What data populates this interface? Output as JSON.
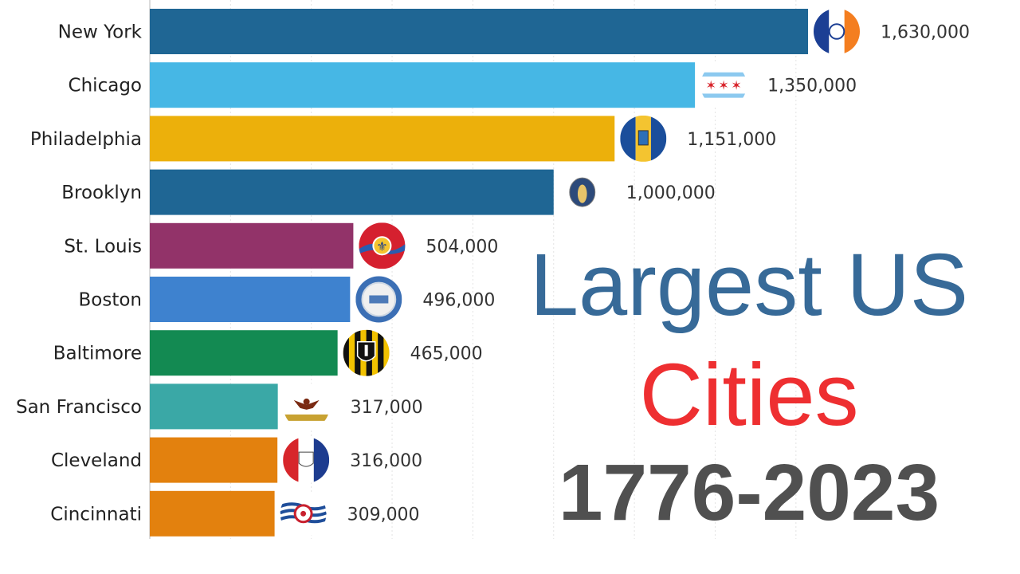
{
  "chart_data": {
    "type": "bar",
    "orientation": "horizontal",
    "categories": [
      "New York",
      "Chicago",
      "Philadelphia",
      "Brooklyn",
      "St. Louis",
      "Boston",
      "Baltimore",
      "San Francisco",
      "Cleveland",
      "Cincinnati"
    ],
    "values": [
      1630000,
      1350000,
      1151000,
      1000000,
      504000,
      496000,
      465000,
      317000,
      316000,
      309000
    ],
    "value_labels": [
      "1,630,000",
      "1,350,000",
      "1,151,000",
      "1,000,000",
      "504,000",
      "496,000",
      "465,000",
      "317,000",
      "316,000",
      "309,000"
    ],
    "bar_colors": [
      "#1f6694",
      "#46b7e5",
      "#ecb00b",
      "#1f6694",
      "#923369",
      "#3e82cf",
      "#138a52",
      "#3aa8a6",
      "#e3810e",
      "#e3810e"
    ],
    "flag_icons": [
      "new-york-flag-icon",
      "chicago-flag-icon",
      "philadelphia-flag-icon",
      "brooklyn-flag-icon",
      "st-louis-flag-icon",
      "boston-flag-icon",
      "baltimore-flag-icon",
      "san-francisco-flag-icon",
      "cleveland-flag-icon",
      "cincinnati-flag-icon"
    ],
    "xlim": [
      0,
      1630000
    ],
    "grid": true,
    "legend": "none"
  },
  "title": {
    "line1": "Largest US",
    "line2": "Cities",
    "line3": "1776-2023",
    "line1_color": "#376a98",
    "line2_color": "#ee2f31",
    "line3_color": "#505050"
  }
}
